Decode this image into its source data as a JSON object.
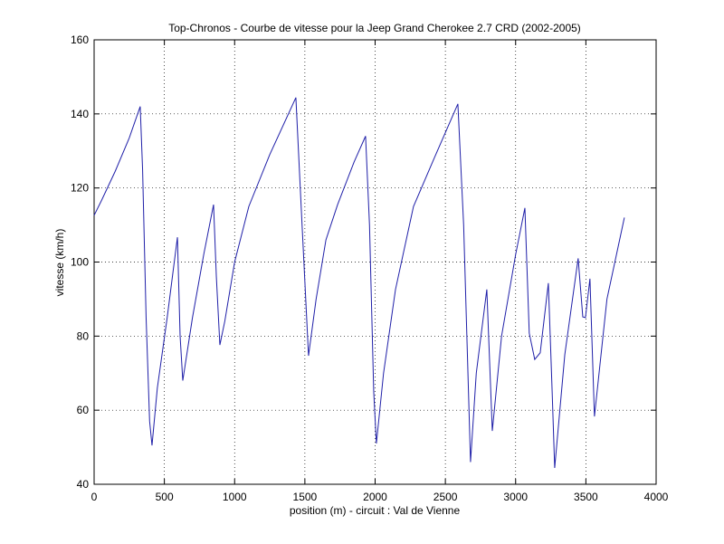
{
  "chart_data": {
    "type": "line",
    "title": "Top-Chronos - Courbe de vitesse pour la Jeep Grand Cherokee 2.7 CRD (2002-2005)",
    "xlabel": "position (m) - circuit : Val de Vienne",
    "ylabel": "vitesse (km/h)",
    "x": [
      0,
      51,
      150,
      250,
      328,
      345,
      370,
      395,
      412,
      450,
      520,
      593,
      612,
      631,
      700,
      780,
      850,
      870,
      895,
      930,
      1000,
      1101,
      1250,
      1436,
      1480,
      1526,
      1580,
      1650,
      1733,
      1850,
      1932,
      1960,
      1990,
      2009,
      2060,
      2145,
      2273,
      2420,
      2589,
      2630,
      2679,
      2720,
      2795,
      2834,
      2900,
      3000,
      3066,
      3097,
      3136,
      3175,
      3233,
      3260,
      3278,
      3350,
      3445,
      3478,
      3497,
      3529,
      3561,
      3650,
      3774
    ],
    "series": [
      {
        "color": "#1f1fa8",
        "values": [
          112.6,
          116.5,
          124.5,
          133.5,
          142,
          125,
          85,
          57,
          50.5,
          66,
          85,
          106.7,
          80,
          68,
          85,
          102,
          115.5,
          96,
          77.6,
          84,
          100,
          115,
          129,
          144.4,
          110,
          74.7,
          90,
          106,
          115.5,
          127,
          134,
          110,
          65,
          51,
          70,
          92.6,
          115,
          128,
          142.7,
          110,
          46,
          70,
          92.6,
          54.4,
          80,
          102,
          114.6,
          80.8,
          73.7,
          75.5,
          94.3,
          65,
          44.4,
          75,
          101,
          85.2,
          85,
          95.5,
          58.3,
          90,
          112
        ]
      }
    ],
    "xlim": [
      0,
      4000
    ],
    "xticks": [
      0,
      500,
      1000,
      1500,
      2000,
      2500,
      3000,
      3500,
      4000
    ],
    "ylim": [
      40,
      160
    ],
    "yticks": [
      40,
      60,
      80,
      100,
      120,
      140,
      160
    ],
    "grid": true
  }
}
